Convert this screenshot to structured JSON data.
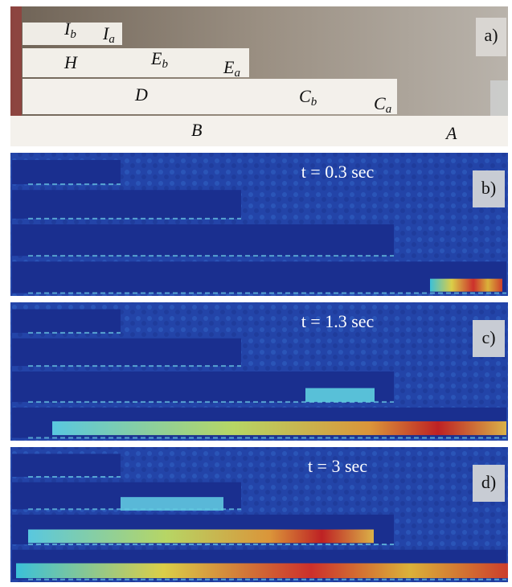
{
  "panels": [
    {
      "label": "a)",
      "parts": [
        {
          "letter": "I",
          "sub": "b"
        },
        {
          "letter": "I",
          "sub": "a"
        },
        {
          "letter": "H"
        },
        {
          "letter": "E",
          "sub": "b"
        },
        {
          "letter": "E",
          "sub": "a"
        },
        {
          "letter": "D"
        },
        {
          "letter": "C",
          "sub": "b"
        },
        {
          "letter": "C",
          "sub": "a"
        },
        {
          "letter": "B"
        },
        {
          "letter": "A"
        }
      ]
    },
    {
      "label": "b)",
      "time": "t = 0.3 sec"
    },
    {
      "label": "c)",
      "time": "t = 1.3 sec"
    },
    {
      "label": "d)",
      "time": "t = 3 sec"
    }
  ]
}
